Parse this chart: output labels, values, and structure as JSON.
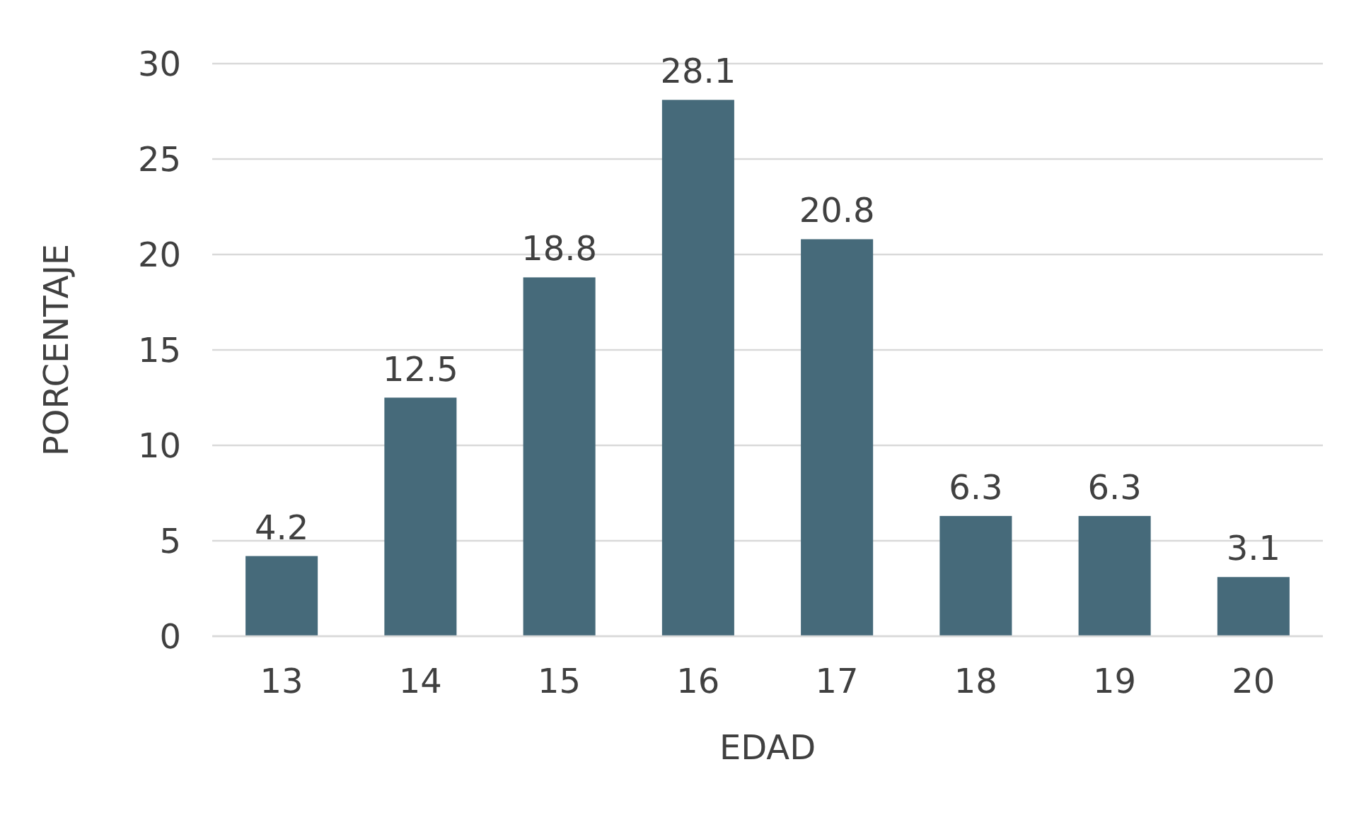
{
  "chart_data": {
    "type": "bar",
    "xlabel": "EDAD",
    "ylabel": "PORCENTAJE",
    "categories": [
      "13",
      "14",
      "15",
      "16",
      "17",
      "18",
      "19",
      "20"
    ],
    "values": [
      4.2,
      12.5,
      18.8,
      28.1,
      20.8,
      6.3,
      6.3,
      3.1
    ],
    "color": "#466a7a",
    "ylim": [
      0,
      30
    ],
    "yticks": [
      0,
      5,
      10,
      15,
      20,
      25,
      30
    ],
    "grid": "y",
    "data_labels": true
  }
}
